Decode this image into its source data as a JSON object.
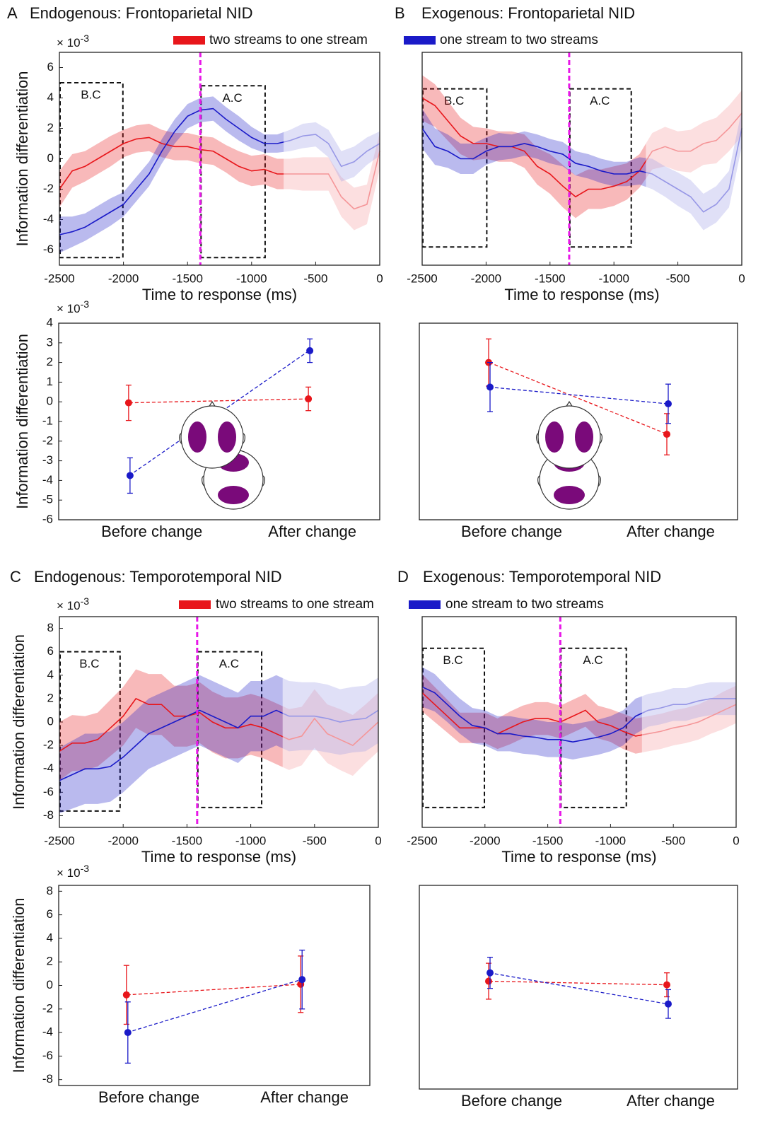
{
  "chart_data": [
    {
      "type": "line",
      "panel": "A",
      "title": "Endogenous: Frontoparietal NID",
      "xlabel": "Time to response (ms)",
      "ylabel": "Information differentiation",
      "y_scale": {
        "base": "× 10",
        "exp": "-3"
      },
      "xlim": [
        -2500,
        0
      ],
      "xticks": [
        -2500,
        -2000,
        -1500,
        -1000,
        -500,
        0
      ],
      "ylim": [
        -7,
        7
      ],
      "yticks": [
        -6,
        -4,
        -2,
        0,
        2,
        4,
        6
      ],
      "vline": -1400,
      "vline_color": "#e817e8",
      "faded_from": -750,
      "annotations": [
        {
          "label": "B.C",
          "x": [
            -2500,
            -2010
          ],
          "y": [
            -6.5,
            5
          ]
        },
        {
          "label": "A.C",
          "x": [
            -1400,
            -900
          ],
          "y": [
            -6.5,
            4.8
          ]
        }
      ],
      "x": [
        -2500,
        -2400,
        -2300,
        -2200,
        -2100,
        -2000,
        -1900,
        -1800,
        -1700,
        -1600,
        -1500,
        -1400,
        -1300,
        -1200,
        -1100,
        -1000,
        -900,
        -800,
        -700,
        -600,
        -500,
        -400,
        -300,
        -200,
        -100,
        0
      ],
      "series": [
        {
          "name": "two streams to one stream",
          "color": "#e8161b",
          "values": [
            -2,
            -0.8,
            -0.5,
            0,
            0.5,
            1,
            1.3,
            1.4,
            1,
            0.8,
            0.8,
            0.6,
            0.5,
            0,
            -0.5,
            -0.8,
            -0.7,
            -1,
            -1,
            -1,
            -1,
            -1,
            -2.5,
            -3.3,
            -3,
            0.5
          ],
          "errors": [
            1.2,
            1.1,
            1,
            1,
            1,
            0.9,
            0.9,
            0.9,
            0.9,
            0.9,
            0.9,
            0.9,
            0.9,
            0.9,
            1,
            1,
            1,
            1,
            1,
            1.1,
            1.1,
            1.1,
            1.3,
            1.4,
            1.3,
            1.2
          ]
        },
        {
          "name": "one stream to two streams",
          "color": "#1a1ac8",
          "values": [
            -5,
            -4.8,
            -4.5,
            -4,
            -3.5,
            -3,
            -2,
            -1,
            0.5,
            1.8,
            2.8,
            3.2,
            3.3,
            2.6,
            2,
            1.4,
            1,
            1,
            1.2,
            1.5,
            1.6,
            1,
            -0.5,
            -0.2,
            0.5,
            1
          ],
          "errors": [
            1.2,
            1,
            0.9,
            0.9,
            0.9,
            0.8,
            0.8,
            0.8,
            0.8,
            0.8,
            0.8,
            0.8,
            0.8,
            0.8,
            0.8,
            0.7,
            0.6,
            0.6,
            0.7,
            0.8,
            0.8,
            0.9,
            1,
            1,
            0.9,
            0.8
          ]
        }
      ]
    },
    {
      "type": "errorpoints",
      "ylabel": "Information differentiation",
      "y_scale": {
        "base": "× 10",
        "exp": "-3"
      },
      "ylim": [
        -6,
        4
      ],
      "yticks": [
        -6,
        -5,
        -4,
        -3,
        -2,
        -1,
        0,
        1,
        2,
        3,
        4
      ],
      "categories": [
        "Before change",
        "After change"
      ],
      "series": [
        {
          "color": "#e8161b",
          "values": [
            -0.05,
            0.15
          ],
          "errors": [
            0.9,
            0.6
          ]
        },
        {
          "color": "#1a1ac8",
          "values": [
            -3.75,
            2.6
          ],
          "errors": [
            0.9,
            0.6
          ]
        }
      ]
    },
    {
      "type": "line",
      "panel": "B",
      "title": "Exogenous: Frontoparietal NID",
      "xlabel": "Time to response (ms)",
      "xlim": [
        -2500,
        0
      ],
      "xticks": [
        -2500,
        -2000,
        -1500,
        -1000,
        -500,
        0
      ],
      "ylim": [
        -7,
        7
      ],
      "yticks": [],
      "vline": -1350,
      "vline_color": "#e817e8",
      "faded_from": -750,
      "annotations": [
        {
          "label": "B.C",
          "x": [
            -2500,
            -2000
          ],
          "y": [
            -5.8,
            4.6
          ]
        },
        {
          "label": "A.C",
          "x": [
            -1350,
            -870
          ],
          "y": [
            -5.8,
            4.6
          ]
        }
      ],
      "x": [
        -2500,
        -2400,
        -2300,
        -2200,
        -2100,
        -2000,
        -1900,
        -1800,
        -1700,
        -1600,
        -1500,
        -1400,
        -1300,
        -1200,
        -1100,
        -1000,
        -900,
        -800,
        -700,
        -600,
        -500,
        -400,
        -300,
        -200,
        -100,
        0
      ],
      "series": [
        {
          "color": "#e8161b",
          "values": [
            4,
            3.5,
            2.5,
            1.5,
            1,
            1,
            0.8,
            0.8,
            0.5,
            -0.5,
            -1,
            -1.8,
            -2.5,
            -2,
            -2,
            -1.8,
            -1.5,
            -0.8,
            0.5,
            0.8,
            0.5,
            0.5,
            1,
            1.2,
            2,
            3
          ],
          "errors": [
            1.5,
            1.4,
            1.3,
            1.2,
            1.1,
            1,
            1,
            1,
            1.1,
            1.2,
            1.3,
            1.4,
            1.4,
            1.3,
            1.3,
            1.3,
            1.2,
            1.1,
            1.2,
            1.3,
            1.3,
            1.4,
            1.4,
            1.5,
            1.5,
            1.5
          ]
        },
        {
          "color": "#1a1ac8",
          "values": [
            2,
            0.8,
            0.5,
            0,
            0,
            0.5,
            0.8,
            0.8,
            1,
            0.8,
            0.5,
            0.3,
            -0.3,
            -0.5,
            -0.8,
            -1,
            -1,
            -0.8,
            -1,
            -1.5,
            -2,
            -2.5,
            -3.5,
            -3,
            -2,
            2
          ],
          "errors": [
            1.3,
            1.2,
            1.1,
            1,
            1,
            0.9,
            0.9,
            0.8,
            0.8,
            0.8,
            0.8,
            0.8,
            0.8,
            0.8,
            0.8,
            0.8,
            0.8,
            0.9,
            1,
            1,
            1.1,
            1.1,
            1.2,
            1.2,
            1.2,
            1.2
          ]
        }
      ]
    },
    {
      "type": "errorpoints",
      "ylim": [
        -6,
        4
      ],
      "yticks": [],
      "categories": [
        "Before change",
        "After change"
      ],
      "series": [
        {
          "color": "#e8161b",
          "values": [
            2,
            -1.65
          ],
          "errors": [
            1.2,
            1.05
          ]
        },
        {
          "color": "#1a1ac8",
          "values": [
            0.75,
            -0.1
          ],
          "errors": [
            1.25,
            1
          ]
        }
      ]
    },
    {
      "type": "line",
      "panel": "C",
      "title": "Endogenous: Temporotemporal NID",
      "xlabel": "Time to response (ms)",
      "ylabel": "Information differentiation",
      "y_scale": {
        "base": "× 10",
        "exp": "-3"
      },
      "xlim": [
        -2500,
        0
      ],
      "xticks": [
        -2500,
        -2000,
        -1500,
        -1000,
        -500,
        0
      ],
      "ylim": [
        -9,
        9
      ],
      "yticks": [
        -8,
        -6,
        -4,
        -2,
        0,
        2,
        4,
        6,
        8
      ],
      "vline": -1420,
      "vline_color": "#e817e8",
      "faded_from": -750,
      "annotations": [
        {
          "label": "B.C",
          "x": [
            -2500,
            -2030
          ],
          "y": [
            -7.6,
            6
          ]
        },
        {
          "label": "A.C",
          "x": [
            -1420,
            -920
          ],
          "y": [
            -7.3,
            6
          ]
        }
      ],
      "x": [
        -2500,
        -2400,
        -2300,
        -2200,
        -2100,
        -2000,
        -1900,
        -1800,
        -1700,
        -1600,
        -1500,
        -1400,
        -1300,
        -1200,
        -1100,
        -1000,
        -900,
        -800,
        -700,
        -600,
        -500,
        -400,
        -300,
        -200,
        -100,
        0
      ],
      "series": [
        {
          "name": "two streams to one stream",
          "color": "#e8161b",
          "values": [
            -2.5,
            -1.8,
            -1.8,
            -1.5,
            -0.5,
            0.5,
            2,
            1.5,
            1.5,
            0.5,
            0.5,
            0.8,
            0,
            -0.5,
            -0.5,
            -0.2,
            -0.5,
            -1,
            -1.5,
            -1.2,
            0.3,
            -1,
            -1.5,
            -2,
            -1,
            0
          ],
          "errors": [
            2.5,
            2.4,
            2.3,
            2.3,
            2.4,
            2.5,
            2.5,
            2.6,
            2.6,
            2.6,
            2.6,
            2.6,
            2.6,
            2.6,
            2.6,
            2.6,
            2.6,
            2.6,
            2.6,
            2.5,
            2.5,
            2.5,
            2.6,
            2.6,
            2.5,
            2.5
          ]
        },
        {
          "name": "one stream to two streams",
          "color": "#1a1ac8",
          "values": [
            -5,
            -4.5,
            -4,
            -4,
            -3.8,
            -3,
            -2,
            -1,
            -0.5,
            0,
            0.5,
            1,
            0.5,
            0,
            -0.5,
            0.5,
            0.5,
            1,
            0.5,
            0.5,
            0.5,
            0.3,
            0,
            0.2,
            0.3,
            1
          ],
          "errors": [
            2.8,
            2.9,
            3,
            3,
            3,
            3,
            3,
            3,
            3,
            3,
            3,
            3,
            3,
            3,
            3,
            3,
            3,
            3,
            3,
            2.9,
            2.9,
            2.9,
            2.8,
            2.8,
            2.8,
            2.8
          ]
        }
      ]
    },
    {
      "type": "errorpoints",
      "ylabel": "Information differentiation",
      "y_scale": {
        "base": "× 10",
        "exp": "-3"
      },
      "ylim": [
        -8.5,
        8.5
      ],
      "yticks": [
        -8,
        -6,
        -4,
        -2,
        0,
        2,
        4,
        6,
        8
      ],
      "categories": [
        "Before change",
        "After change"
      ],
      "series": [
        {
          "color": "#e8161b",
          "values": [
            -0.8,
            0.1
          ],
          "errors": [
            2.5,
            2.4
          ]
        },
        {
          "color": "#1a1ac8",
          "values": [
            -4,
            0.5
          ],
          "errors": [
            2.6,
            2.5
          ]
        }
      ]
    },
    {
      "type": "line",
      "panel": "D",
      "title": "Exogenous: Temporotemporal NID",
      "xlabel": "Time to response (ms)",
      "xlim": [
        -2500,
        0
      ],
      "xticks": [
        -2500,
        -2000,
        -1500,
        -1000,
        -500,
        0
      ],
      "ylim": [
        -9,
        9
      ],
      "yticks": [],
      "vline": -1400,
      "vline_color": "#e817e8",
      "faded_from": -750,
      "annotations": [
        {
          "label": "B.C",
          "x": [
            -2500,
            -2010
          ],
          "y": [
            -7.3,
            6.3
          ]
        },
        {
          "label": "A.C",
          "x": [
            -1400,
            -880
          ],
          "y": [
            -7.3,
            6.3
          ]
        }
      ],
      "x": [
        -2500,
        -2400,
        -2300,
        -2200,
        -2100,
        -2000,
        -1900,
        -1800,
        -1700,
        -1600,
        -1500,
        -1400,
        -1300,
        -1200,
        -1100,
        -1000,
        -900,
        -800,
        -700,
        -600,
        -500,
        -400,
        -300,
        -200,
        -100,
        0
      ],
      "series": [
        {
          "color": "#e8161b",
          "values": [
            2.5,
            1.5,
            0.5,
            -0.5,
            -0.5,
            -0.5,
            -1,
            -0.5,
            0,
            0.3,
            0.3,
            0,
            0.5,
            1,
            0,
            -0.3,
            -0.8,
            -1.2,
            -1,
            -0.8,
            -0.5,
            -0.3,
            0,
            0.5,
            1,
            1.5
          ],
          "errors": [
            1.6,
            1.5,
            1.4,
            1.3,
            1.3,
            1.3,
            1.3,
            1.4,
            1.4,
            1.4,
            1.4,
            1.4,
            1.4,
            1.4,
            1.4,
            1.4,
            1.5,
            1.5,
            1.5,
            1.5,
            1.5,
            1.5,
            1.5,
            1.5,
            1.6,
            1.6
          ]
        },
        {
          "color": "#1a1ac8",
          "values": [
            3,
            2.5,
            1.5,
            0.5,
            -0.3,
            -0.5,
            -1,
            -1,
            -1.2,
            -1.3,
            -1.5,
            -1.5,
            -1.7,
            -1.5,
            -1.3,
            -1,
            -0.5,
            0.5,
            1,
            1.2,
            1.5,
            1.5,
            1.8,
            2,
            2,
            2
          ],
          "errors": [
            1.7,
            1.6,
            1.5,
            1.5,
            1.5,
            1.5,
            1.5,
            1.5,
            1.5,
            1.5,
            1.5,
            1.5,
            1.5,
            1.5,
            1.5,
            1.5,
            1.5,
            1.5,
            1.4,
            1.4,
            1.4,
            1.4,
            1.4,
            1.4,
            1.4,
            1.4
          ]
        }
      ]
    },
    {
      "type": "errorpoints",
      "ylim": [
        -8.5,
        8.5
      ],
      "yticks": [],
      "categories": [
        "Before change",
        "After change"
      ],
      "series": [
        {
          "color": "#e8161b",
          "values": [
            0.5,
            0.2
          ],
          "errors": [
            1.5,
            1
          ]
        },
        {
          "color": "#1a1ac8",
          "values": [
            1.2,
            -1.4
          ],
          "errors": [
            1.3,
            1.2
          ]
        }
      ]
    }
  ]
}
